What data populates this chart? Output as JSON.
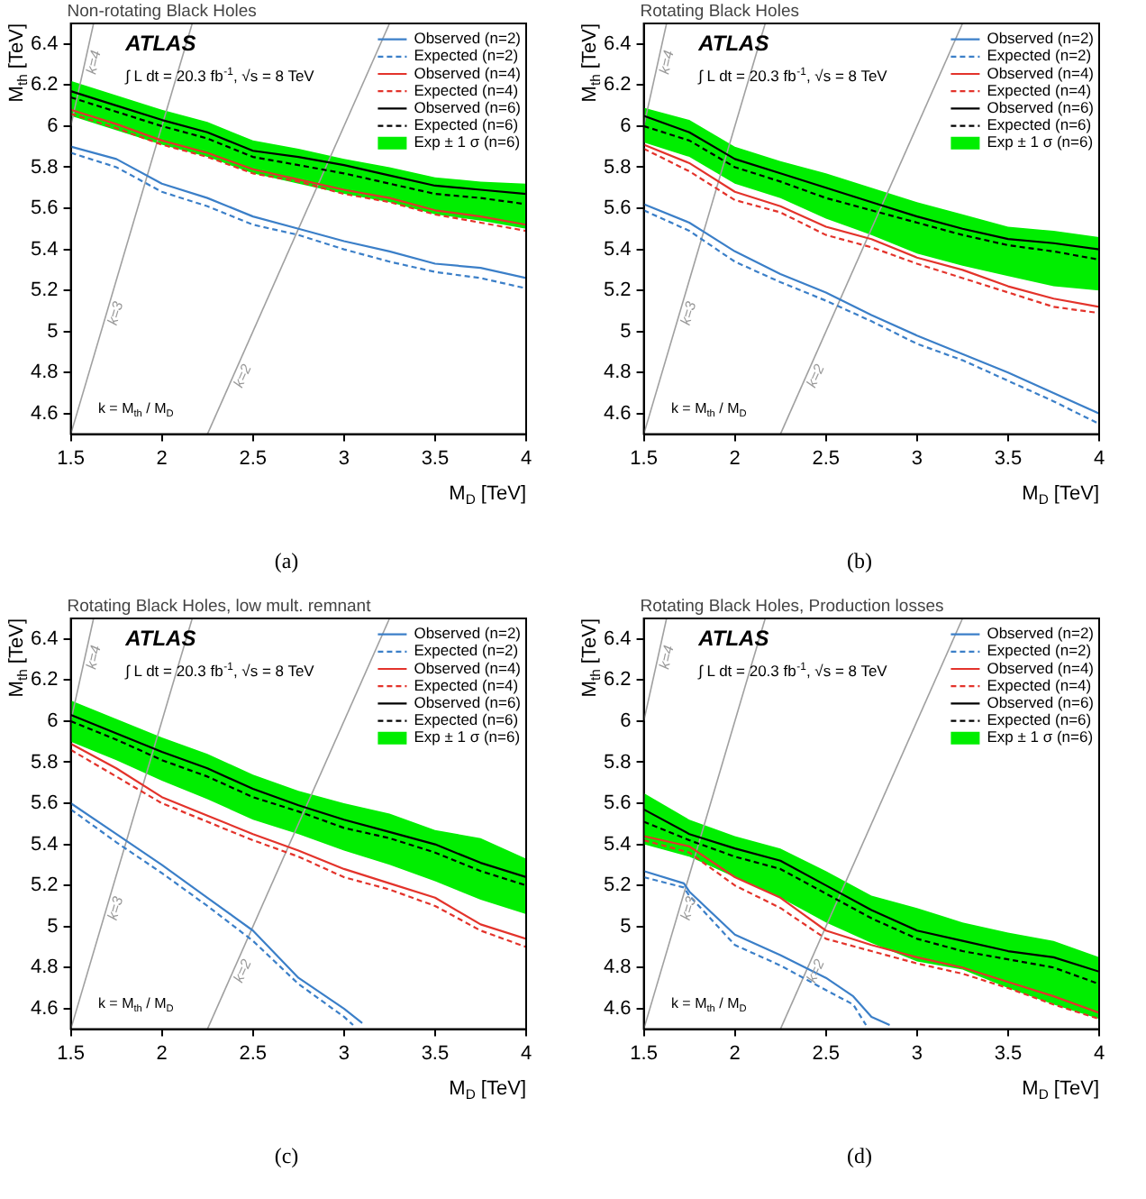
{
  "chart_data": [
    {
      "type": "line",
      "title": "Non-rotating Black Holes",
      "xlabel": "M$_{D}$ [TeV]",
      "ylabel": "M$_{th}$ [TeV]",
      "legend": "top right",
      "xlim": [
        1.5,
        4
      ],
      "ylim": [
        4.5,
        6.5
      ],
      "xticks": [
        1.5,
        2,
        2.5,
        3,
        3.5,
        4
      ],
      "yticks": [
        4.6,
        4.8,
        5,
        5.2,
        5.4,
        5.6,
        5.8,
        6,
        6.2,
        6.4
      ],
      "x": [
        1.5,
        1.75,
        2,
        2.25,
        2.5,
        2.75,
        3,
        3.25,
        3.5,
        3.75,
        4
      ],
      "annotations": [
        "ATLAS",
        "∫ L dt = 20.3 fb$^{-1}$, √s = 8 TeV",
        "k = M$_{th}$ / M$_{D}$",
        "(a)",
        {
          "text": "k=4",
          "x": 1.58,
          "y": 6.32
        },
        {
          "text": "k=3",
          "x": 1.7,
          "y": 5.1
        },
        {
          "text": "k=2",
          "x": 2.4,
          "y": 4.8
        }
      ],
      "series": [
        {
          "name": "Observed (n=2)",
          "color": "#3b7fc8",
          "values": [
            5.9,
            5.84,
            5.72,
            5.65,
            5.56,
            5.5,
            5.44,
            5.39,
            5.33,
            5.31,
            5.26
          ]
        },
        {
          "name": "Expected (n=2)",
          "color": "#3b7fc8",
          "line_style": "dashed",
          "values": [
            5.87,
            5.8,
            5.68,
            5.61,
            5.52,
            5.47,
            5.4,
            5.34,
            5.29,
            5.26,
            5.21
          ]
        },
        {
          "name": "Observed (n=4)",
          "color": "#e3332b",
          "values": [
            6.08,
            6.01,
            5.93,
            5.87,
            5.79,
            5.74,
            5.69,
            5.65,
            5.59,
            5.56,
            5.52
          ]
        },
        {
          "name": "Expected (n=4)",
          "color": "#e3332b",
          "line_style": "dashed",
          "values": [
            6.06,
            5.99,
            5.91,
            5.85,
            5.77,
            5.73,
            5.67,
            5.63,
            5.57,
            5.53,
            5.49
          ]
        },
        {
          "name": "Observed (n=6)",
          "color": "#000000",
          "values": [
            6.17,
            6.1,
            6.03,
            5.97,
            5.88,
            5.85,
            5.81,
            5.76,
            5.71,
            5.69,
            5.67
          ]
        },
        {
          "name": "Expected (n=6)",
          "color": "#000000",
          "line_style": "dashed",
          "values": [
            6.14,
            6.07,
            6,
            5.94,
            5.85,
            5.81,
            5.77,
            5.72,
            5.67,
            5.65,
            5.62
          ]
        },
        {
          "name": "Exp ± 1 σ (n=6)",
          "color": "#00ee00",
          "values": [
            null,
            null,
            null,
            null,
            null,
            null,
            null,
            null,
            null,
            null,
            null
          ],
          "lower": [
            6.05,
            5.98,
            5.91,
            5.85,
            5.77,
            5.72,
            5.67,
            5.63,
            5.57,
            5.54,
            5.5
          ],
          "upper": [
            6.22,
            6.15,
            6.08,
            6.02,
            5.93,
            5.89,
            5.84,
            5.8,
            5.75,
            5.73,
            5.72
          ]
        },
        {
          "color": "#a0a0a0",
          "x": [
            1.5,
            1.625
          ],
          "values": [
            6,
            6.5
          ]
        },
        {
          "color": "#a0a0a0",
          "x": [
            1.5,
            2.1667
          ],
          "values": [
            4.5,
            6.5
          ]
        },
        {
          "color": "#a0a0a0",
          "x": [
            2.25,
            3.25
          ],
          "values": [
            4.5,
            6.5
          ]
        }
      ]
    },
    {
      "type": "line",
      "title": "Rotating Black Holes",
      "xlabel": "M$_{D}$ [TeV]",
      "ylabel": "M$_{th}$ [TeV]",
      "legend": "top right",
      "xlim": [
        1.5,
        4
      ],
      "ylim": [
        4.5,
        6.5
      ],
      "xticks": [
        1.5,
        2,
        2.5,
        3,
        3.5,
        4
      ],
      "yticks": [
        4.6,
        4.8,
        5,
        5.2,
        5.4,
        5.6,
        5.8,
        6,
        6.2,
        6.4
      ],
      "x": [
        1.5,
        1.75,
        2,
        2.25,
        2.5,
        2.75,
        3,
        3.25,
        3.5,
        3.75,
        4
      ],
      "annotations": [
        "ATLAS",
        "∫ L dt = 20.3 fb$^{-1}$, √s = 8 TeV",
        "k = M$_{th}$ / M$_{D}$",
        "(b)",
        {
          "text": "k=4",
          "x": 1.58,
          "y": 6.32
        },
        {
          "text": "k=3",
          "x": 1.7,
          "y": 5.1
        },
        {
          "text": "k=2",
          "x": 2.4,
          "y": 4.8
        }
      ],
      "series": [
        {
          "name": "Observed (n=2)",
          "color": "#3b7fc8",
          "values": [
            5.62,
            5.53,
            5.39,
            5.28,
            5.19,
            5.08,
            4.98,
            4.89,
            4.8,
            4.7,
            4.6
          ]
        },
        {
          "name": "Expected (n=2)",
          "color": "#3b7fc8",
          "line_style": "dashed",
          "values": [
            5.59,
            5.49,
            5.34,
            5.24,
            5.15,
            5.05,
            4.94,
            4.86,
            4.76,
            4.66,
            4.55
          ]
        },
        {
          "name": "Observed (n=4)",
          "color": "#e3332b",
          "values": [
            5.91,
            5.82,
            5.68,
            5.61,
            5.51,
            5.45,
            5.36,
            5.3,
            5.22,
            5.16,
            5.12
          ]
        },
        {
          "name": "Expected (n=4)",
          "color": "#e3332b",
          "line_style": "dashed",
          "values": [
            5.89,
            5.78,
            5.64,
            5.58,
            5.47,
            5.41,
            5.33,
            5.26,
            5.19,
            5.12,
            5.09
          ]
        },
        {
          "name": "Observed (n=6)",
          "color": "#000000",
          "values": [
            6.05,
            5.97,
            5.84,
            5.77,
            5.7,
            5.63,
            5.56,
            5.5,
            5.45,
            5.43,
            5.4
          ]
        },
        {
          "name": "Expected (n=6)",
          "color": "#000000",
          "line_style": "dashed",
          "values": [
            6,
            5.93,
            5.8,
            5.73,
            5.65,
            5.59,
            5.53,
            5.47,
            5.42,
            5.39,
            5.35
          ]
        },
        {
          "name": "Exp ± 1 σ (n=6)",
          "color": "#00ee00",
          "values": [
            null,
            null,
            null,
            null,
            null,
            null,
            null,
            null,
            null,
            null,
            null
          ],
          "lower": [
            5.92,
            5.85,
            5.72,
            5.65,
            5.55,
            5.47,
            5.38,
            5.32,
            5.27,
            5.22,
            5.2
          ],
          "upper": [
            6.09,
            6.03,
            5.9,
            5.83,
            5.77,
            5.7,
            5.63,
            5.57,
            5.51,
            5.49,
            5.46
          ]
        },
        {
          "color": "#a0a0a0",
          "x": [
            1.5,
            1.625
          ],
          "values": [
            6,
            6.5
          ]
        },
        {
          "color": "#a0a0a0",
          "x": [
            1.5,
            2.1667
          ],
          "values": [
            4.5,
            6.5
          ]
        },
        {
          "color": "#a0a0a0",
          "x": [
            2.25,
            3.25
          ],
          "values": [
            4.5,
            6.5
          ]
        }
      ]
    },
    {
      "type": "line",
      "title": "Rotating Black Holes, low mult. remnant",
      "xlabel": "M$_{D}$ [TeV]",
      "ylabel": "M$_{th}$ [TeV]",
      "legend": "top right",
      "xlim": [
        1.5,
        4
      ],
      "ylim": [
        4.5,
        6.5
      ],
      "xticks": [
        1.5,
        2,
        2.5,
        3,
        3.5,
        4
      ],
      "yticks": [
        4.6,
        4.8,
        5,
        5.2,
        5.4,
        5.6,
        5.8,
        6,
        6.2,
        6.4
      ],
      "x": [
        1.5,
        1.75,
        2,
        2.25,
        2.5,
        2.75,
        3,
        3.25,
        3.5,
        3.75,
        4
      ],
      "annotations": [
        "ATLAS",
        "∫ L dt = 20.3 fb$^{-1}$, √s = 8 TeV",
        "k = M$_{th}$ / M$_{D}$",
        "(c)",
        {
          "text": "k=4",
          "x": 1.58,
          "y": 6.32
        },
        {
          "text": "k=3",
          "x": 1.7,
          "y": 5.1
        },
        {
          "text": "k=2",
          "x": 2.4,
          "y": 4.8
        }
      ],
      "series": [
        {
          "name": "Observed (n=2)",
          "color": "#3b7fc8",
          "x": [
            1.5,
            1.75,
            2,
            2.25,
            2.5,
            2.75,
            3,
            3.1
          ],
          "values": [
            5.6,
            5.45,
            5.3,
            5.14,
            4.98,
            4.75,
            4.6,
            4.53
          ]
        },
        {
          "name": "Expected (n=2)",
          "color": "#3b7fc8",
          "line_style": "dashed",
          "x": [
            1.5,
            1.75,
            2,
            2.25,
            2.5,
            2.75,
            3,
            3.05
          ],
          "values": [
            5.57,
            5.41,
            5.26,
            5.1,
            4.93,
            4.72,
            4.56,
            4.52
          ]
        },
        {
          "name": "Observed (n=4)",
          "color": "#e3332b",
          "values": [
            5.89,
            5.77,
            5.63,
            5.54,
            5.45,
            5.37,
            5.28,
            5.21,
            5.14,
            5.01,
            4.94
          ]
        },
        {
          "name": "Expected (n=4)",
          "color": "#e3332b",
          "line_style": "dashed",
          "values": [
            5.86,
            5.73,
            5.6,
            5.51,
            5.42,
            5.34,
            5.24,
            5.18,
            5.1,
            4.98,
            4.9
          ]
        },
        {
          "name": "Observed (n=6)",
          "color": "#000000",
          "values": [
            6.03,
            5.94,
            5.85,
            5.77,
            5.67,
            5.59,
            5.52,
            5.46,
            5.4,
            5.31,
            5.24
          ]
        },
        {
          "name": "Expected (n=6)",
          "color": "#000000",
          "line_style": "dashed",
          "values": [
            6,
            5.91,
            5.81,
            5.73,
            5.63,
            5.56,
            5.48,
            5.43,
            5.36,
            5.27,
            5.2
          ]
        },
        {
          "name": "Exp ± 1 σ (n=6)",
          "color": "#00ee00",
          "values": [
            null,
            null,
            null,
            null,
            null,
            null,
            null,
            null,
            null,
            null,
            null
          ],
          "lower": [
            5.9,
            5.81,
            5.71,
            5.62,
            5.52,
            5.45,
            5.37,
            5.3,
            5.22,
            5.13,
            5.06
          ],
          "upper": [
            6.1,
            6.01,
            5.92,
            5.84,
            5.74,
            5.66,
            5.6,
            5.55,
            5.47,
            5.43,
            5.33
          ]
        },
        {
          "color": "#a0a0a0",
          "x": [
            1.5,
            1.625
          ],
          "values": [
            6,
            6.5
          ]
        },
        {
          "color": "#a0a0a0",
          "x": [
            1.5,
            2.1667
          ],
          "values": [
            4.5,
            6.5
          ]
        },
        {
          "color": "#a0a0a0",
          "x": [
            2.25,
            3.25
          ],
          "values": [
            4.5,
            6.5
          ]
        }
      ]
    },
    {
      "type": "line",
      "title": "Rotating Black Holes, Production losses",
      "xlabel": "M$_{D}$ [TeV]",
      "ylabel": "M$_{th}$ [TeV]",
      "legend": "top right",
      "xlim": [
        1.5,
        4
      ],
      "ylim": [
        4.5,
        6.5
      ],
      "xticks": [
        1.5,
        2,
        2.5,
        3,
        3.5,
        4
      ],
      "yticks": [
        4.6,
        4.8,
        5,
        5.2,
        5.4,
        5.6,
        5.8,
        6,
        6.2,
        6.4
      ],
      "x": [
        1.5,
        1.75,
        2,
        2.25,
        2.5,
        2.75,
        3,
        3.25,
        3.5,
        3.75,
        4
      ],
      "annotations": [
        "ATLAS",
        "∫ L dt = 20.3 fb$^{-1}$, √s = 8 TeV",
        "k = M$_{th}$ / M$_{D}$",
        "(d)",
        {
          "text": "k=4",
          "x": 1.58,
          "y": 6.32
        },
        {
          "text": "k=3",
          "x": 1.7,
          "y": 5.1
        },
        {
          "text": "k=2",
          "x": 2.4,
          "y": 4.8
        }
      ],
      "series": [
        {
          "name": "Observed (n=2)",
          "color": "#3b7fc8",
          "x": [
            1.5,
            1.72,
            1.75,
            2,
            2.25,
            2.5,
            2.65,
            2.75,
            2.85
          ],
          "values": [
            5.27,
            5.21,
            5.17,
            4.96,
            4.86,
            4.75,
            4.66,
            4.56,
            4.52
          ]
        },
        {
          "name": "Expected (n=2)",
          "color": "#3b7fc8",
          "line_style": "dashed",
          "x": [
            1.5,
            1.72,
            1.75,
            2,
            2.25,
            2.5,
            2.65,
            2.72
          ],
          "values": [
            5.24,
            5.19,
            5.15,
            4.91,
            4.81,
            4.69,
            4.62,
            4.52
          ]
        },
        {
          "name": "Observed (n=4)",
          "color": "#e3332b",
          "values": [
            5.44,
            5.39,
            5.24,
            5.14,
            4.98,
            4.91,
            4.85,
            4.8,
            4.73,
            4.66,
            4.58
          ]
        },
        {
          "name": "Expected (n=4)",
          "color": "#e3332b",
          "line_style": "dashed",
          "values": [
            5.42,
            5.36,
            5.2,
            5.09,
            4.94,
            4.88,
            4.82,
            4.77,
            4.7,
            4.62,
            4.55
          ]
        },
        {
          "name": "Observed (n=6)",
          "color": "#000000",
          "values": [
            5.57,
            5.45,
            5.38,
            5.32,
            5.2,
            5.08,
            4.98,
            4.93,
            4.88,
            4.85,
            4.78
          ]
        },
        {
          "name": "Expected (n=6)",
          "color": "#000000",
          "line_style": "dashed",
          "values": [
            5.51,
            5.42,
            5.34,
            5.28,
            5.16,
            5.04,
            4.94,
            4.88,
            4.84,
            4.8,
            4.72
          ]
        },
        {
          "name": "Exp ± 1 σ (n=6)",
          "color": "#00ee00",
          "values": [
            null,
            null,
            null,
            null,
            null,
            null,
            null,
            null,
            null,
            null,
            null
          ],
          "lower": [
            5.4,
            5.34,
            5.24,
            5.14,
            5.02,
            4.92,
            4.83,
            4.79,
            4.7,
            4.62,
            4.55
          ],
          "upper": [
            5.65,
            5.52,
            5.44,
            5.38,
            5.27,
            5.15,
            5.09,
            5.02,
            4.97,
            4.93,
            4.85
          ]
        },
        {
          "color": "#a0a0a0",
          "x": [
            1.5,
            1.625
          ],
          "values": [
            6,
            6.5
          ]
        },
        {
          "color": "#a0a0a0",
          "x": [
            1.5,
            2.1667
          ],
          "values": [
            4.5,
            6.5
          ]
        },
        {
          "color": "#a0a0a0",
          "x": [
            2.25,
            3.25
          ],
          "values": [
            4.5,
            6.5
          ]
        }
      ]
    }
  ]
}
